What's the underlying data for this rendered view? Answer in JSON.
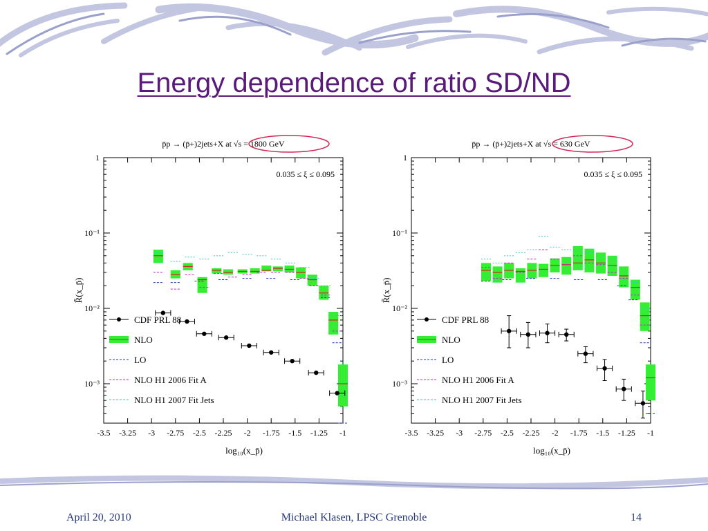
{
  "slide": {
    "title": "Energy dependence of ratio SD/ND",
    "footer_date": "April 20, 2010",
    "footer_author": "Michael Klasen, LPSC Grenoble",
    "footer_page": "14",
    "title_color": "#5a1a7a",
    "accent_color": "#c7c9e3",
    "highlight_circle_color": "#cc2a55"
  },
  "chart_data": [
    {
      "type": "scatter",
      "title": "p̄p → (p̄+)2jets+X  at  √s = 1800 GeV",
      "annotation": "0.035 ≤ ξ ≤ 0.095",
      "xlabel": "log₁₀(x_p̄)",
      "ylabel": "R̃(x_p̄)",
      "xlim": [
        -3.5,
        -1
      ],
      "ylim": [
        0.0003,
        1
      ],
      "yscale": "log",
      "xticks": [
        "-3.5",
        "-3.25",
        "-3",
        "-2.75",
        "-2.5",
        "-2.25",
        "-2",
        "-1.75",
        "-1.5",
        "-1.25",
        "-1"
      ],
      "yticks": [
        "10⁻³",
        "10⁻²",
        "10⁻¹",
        "1"
      ],
      "legend": [
        "CDF PRL 88",
        "NLO",
        "LO",
        "NLO H1 2006 Fit A",
        "NLO H1 2007 Fit Jets"
      ],
      "legend_position": "bottom-left",
      "colors": {
        "data": "#000000",
        "nlo_band": "#33ee33",
        "nlo_line": "#dd2222",
        "lo": "#2233bb",
        "fitA": "#cc22cc",
        "fitJets": "#33cccc"
      },
      "series": [
        {
          "name": "CDF PRL 88",
          "x": [
            -2.88,
            -2.63,
            -2.45,
            -2.22,
            -1.98,
            -1.75,
            -1.53,
            -1.28,
            -1.06
          ],
          "y": [
            0.0087,
            0.0067,
            0.0046,
            0.0041,
            0.0032,
            0.0026,
            0.002,
            0.0014,
            0.00075
          ],
          "xerr": 0.08
        },
        {
          "name": "NLO",
          "x": [
            -2.93,
            -2.75,
            -2.62,
            -2.47,
            -2.32,
            -2.2,
            -2.05,
            -1.92,
            -1.8,
            -1.68,
            -1.56,
            -1.44,
            -1.32,
            -1.2,
            -1.1,
            -1.0
          ],
          "y": [
            0.05,
            0.028,
            0.036,
            0.024,
            0.032,
            0.03,
            0.031,
            0.031,
            0.032,
            0.034,
            0.033,
            0.03,
            0.024,
            0.016,
            0.007,
            0.001
          ],
          "band": [
            [
              0.04,
              0.06
            ],
            [
              0.025,
              0.032
            ],
            [
              0.032,
              0.04
            ],
            [
              0.016,
              0.026
            ],
            [
              0.029,
              0.034
            ],
            [
              0.028,
              0.033
            ],
            [
              0.029,
              0.033
            ],
            [
              0.029,
              0.034
            ],
            [
              0.031,
              0.037
            ],
            [
              0.031,
              0.036
            ],
            [
              0.03,
              0.037
            ],
            [
              0.025,
              0.035
            ],
            [
              0.02,
              0.028
            ],
            [
              0.013,
              0.02
            ],
            [
              0.0045,
              0.009
            ],
            [
              0.0005,
              0.0018
            ]
          ]
        },
        {
          "name": "LO",
          "x": [
            -2.93,
            -2.75,
            -2.5,
            -2.25,
            -2.0,
            -1.75,
            -1.5,
            -1.3,
            -1.18,
            -1.06,
            -1.0
          ],
          "y": [
            0.022,
            0.022,
            0.023,
            0.024,
            0.025,
            0.025,
            0.024,
            0.02,
            0.014,
            0.0035,
            0.0003
          ]
        },
        {
          "name": "NLO H1 2006 Fit A",
          "x": [
            -2.93,
            -2.75,
            -2.6,
            -2.45,
            -2.3,
            -2.15,
            -2.0,
            -1.85,
            -1.7,
            -1.55,
            -1.4,
            -1.3,
            -1.18,
            -1.06
          ],
          "y": [
            0.03,
            0.018,
            0.028,
            0.019,
            0.029,
            0.026,
            0.028,
            0.03,
            0.03,
            0.03,
            0.025,
            0.02,
            0.015,
            0.005
          ]
        },
        {
          "name": "NLO H1 2007 Fit Jets",
          "x": [
            -2.93,
            -2.75,
            -2.6,
            -2.45,
            -2.3,
            -2.15,
            -2.0,
            -1.85,
            -1.7,
            -1.55,
            -1.4,
            -1.3,
            -1.18,
            -1.06
          ],
          "y": [
            0.055,
            0.042,
            0.048,
            0.045,
            0.05,
            0.055,
            0.052,
            0.05,
            0.045,
            0.04,
            0.035,
            0.025,
            0.02,
            0.008
          ]
        }
      ]
    },
    {
      "type": "scatter",
      "title": "p̄p → (p̄+)2jets+X  at  √s = 630 GeV",
      "annotation": "0.035 ≤ ξ ≤ 0.095",
      "xlabel": "log₁₀(x_p̄)",
      "ylabel": "R̃(x_p̄)",
      "xlim": [
        -3.5,
        -1
      ],
      "ylim": [
        0.0003,
        1
      ],
      "yscale": "log",
      "xticks": [
        "-3.5",
        "-3.25",
        "-3",
        "-2.75",
        "-2.5",
        "-2.25",
        "-2",
        "-1.75",
        "-1.5",
        "-1.25",
        "-1"
      ],
      "yticks": [
        "10⁻³",
        "10⁻²",
        "10⁻¹",
        "1"
      ],
      "legend": [
        "CDF PRL 88",
        "NLO",
        "LO",
        "NLO H1 2006 Fit A",
        "NLO H1 2007 Fit Jets"
      ],
      "legend_position": "bottom-left",
      "colors": {
        "data": "#000000",
        "nlo_band": "#33ee33",
        "nlo_line": "#dd2222",
        "lo": "#2233bb",
        "fitA": "#cc22cc",
        "fitJets": "#33cccc"
      },
      "series": [
        {
          "name": "CDF PRL 88",
          "x": [
            -2.48,
            -2.28,
            -2.08,
            -1.88,
            -1.68,
            -1.48,
            -1.28,
            -1.08
          ],
          "y": [
            0.005,
            0.0045,
            0.0047,
            0.0045,
            0.0025,
            0.0016,
            0.00085,
            0.00055
          ],
          "xerr": 0.08,
          "yerr_low": [
            0.002,
            0.0015,
            0.0012,
            0.0008,
            0.0006,
            0.0005,
            0.00025,
            0.0002
          ],
          "yerr_high": [
            0.003,
            0.002,
            0.0015,
            0.0008,
            0.0006,
            0.0005,
            0.0003,
            0.00025
          ]
        },
        {
          "name": "NLO",
          "x": [
            -2.72,
            -2.6,
            -2.48,
            -2.36,
            -2.24,
            -2.12,
            -2.0,
            -1.88,
            -1.76,
            -1.64,
            -1.52,
            -1.4,
            -1.28,
            -1.16,
            -1.06,
            -1.0
          ],
          "y": [
            0.032,
            0.03,
            0.032,
            0.031,
            0.032,
            0.033,
            0.037,
            0.038,
            0.04,
            0.044,
            0.04,
            0.037,
            0.027,
            0.019,
            0.008,
            0.0012
          ],
          "band": [
            [
              0.023,
              0.04
            ],
            [
              0.022,
              0.036
            ],
            [
              0.025,
              0.04
            ],
            [
              0.022,
              0.034
            ],
            [
              0.025,
              0.04
            ],
            [
              0.026,
              0.039
            ],
            [
              0.03,
              0.046
            ],
            [
              0.028,
              0.048
            ],
            [
              0.032,
              0.067
            ],
            [
              0.03,
              0.062
            ],
            [
              0.029,
              0.055
            ],
            [
              0.027,
              0.05
            ],
            [
              0.019,
              0.036
            ],
            [
              0.013,
              0.024
            ],
            [
              0.005,
              0.012
            ],
            [
              0.0006,
              0.0018
            ]
          ]
        },
        {
          "name": "LO",
          "x": [
            -2.72,
            -2.5,
            -2.25,
            -2.0,
            -1.75,
            -1.5,
            -1.3,
            -1.18,
            -1.06,
            -1.0
          ],
          "y": [
            0.023,
            0.024,
            0.025,
            0.025,
            0.024,
            0.024,
            0.02,
            0.013,
            0.0035,
            0.0004
          ]
        },
        {
          "name": "NLO H1 2006 Fit A",
          "x": [
            -2.72,
            -2.6,
            -2.48,
            -2.36,
            -2.24,
            -2.12,
            -2.0,
            -1.88,
            -1.76,
            -1.64,
            -1.52,
            -1.4,
            -1.28,
            -1.16,
            -1.06
          ],
          "y": [
            0.035,
            0.025,
            0.04,
            0.03,
            0.045,
            0.06,
            0.045,
            0.038,
            0.05,
            0.04,
            0.038,
            0.03,
            0.025,
            0.015,
            0.006
          ]
        },
        {
          "name": "NLO H1 2007 Fit Jets",
          "x": [
            -2.72,
            -2.6,
            -2.48,
            -2.36,
            -2.24,
            -2.12,
            -2.0,
            -1.88,
            -1.76,
            -1.64,
            -1.52,
            -1.4,
            -1.28,
            -1.16,
            -1.06
          ],
          "y": [
            0.045,
            0.04,
            0.05,
            0.055,
            0.06,
            0.09,
            0.065,
            0.06,
            0.06,
            0.055,
            0.05,
            0.045,
            0.035,
            0.022,
            0.01
          ]
        }
      ]
    }
  ]
}
